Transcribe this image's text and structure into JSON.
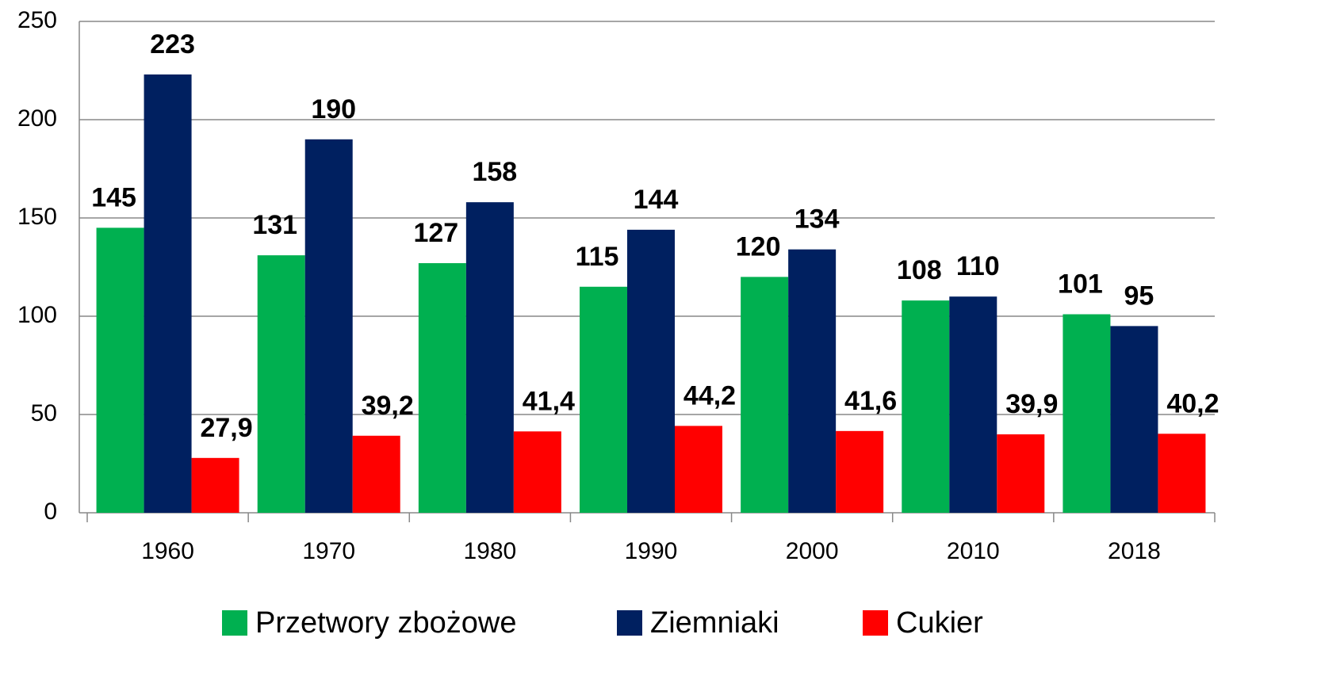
{
  "chart_data": {
    "type": "bar",
    "categories": [
      "1960",
      "1970",
      "1980",
      "1990",
      "2000",
      "2010",
      "2018"
    ],
    "series": [
      {
        "name": "Przetwory zbożowe",
        "color": "#00b050",
        "values": [
          145,
          131,
          127,
          115,
          120,
          108,
          101
        ]
      },
      {
        "name": "Ziemniaki",
        "color": "#002060",
        "values": [
          223,
          190,
          158,
          144,
          134,
          110,
          95
        ]
      },
      {
        "name": "Cukier",
        "color": "#ff0000",
        "values": [
          27.9,
          39.2,
          41.4,
          44.2,
          41.6,
          39.9,
          40.2
        ],
        "value_labels": [
          "27,9",
          "39,2",
          "41,4",
          "44,2",
          "41,6",
          "39,9",
          "40,2"
        ]
      }
    ],
    "ylim": [
      0,
      250
    ],
    "yticks": [
      0,
      50,
      100,
      150,
      200,
      250
    ],
    "grid": true,
    "legend": "bottom"
  }
}
